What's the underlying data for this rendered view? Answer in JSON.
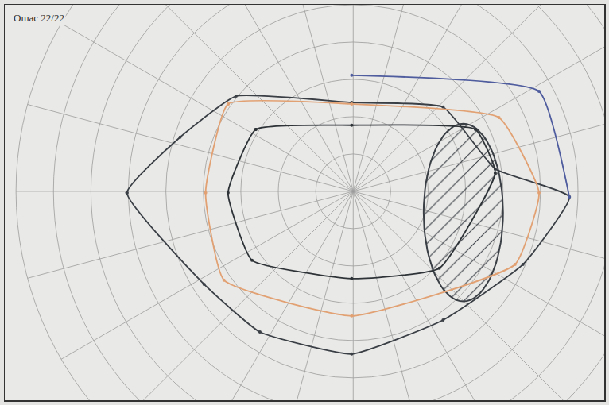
{
  "chart_data": {
    "type": "scatter",
    "title": "Omac 22/22",
    "xlim": [
      -93,
      67
    ],
    "ylim": [
      -56,
      50
    ],
    "tick_labels": false,
    "grid": true,
    "rings": [
      10,
      20,
      30,
      40,
      50,
      60,
      70,
      80,
      90
    ],
    "meridians": [
      0,
      15,
      30,
      45,
      60,
      75,
      90,
      105,
      120,
      135,
      150,
      165,
      180,
      195,
      210,
      225,
      240,
      255,
      270,
      285,
      300,
      315,
      330,
      345
    ],
    "series": [
      {
        "color": "#3a3f46",
        "marker": "circle",
        "line_style": "solid",
        "x": [
          -60.4,
          -46.2,
          -31.3,
          -0.4,
          24.0,
          37.9,
          57.7,
          45.3,
          24.0,
          -0.4,
          -24.9,
          -39.8,
          -60.4
        ],
        "y": [
          -0.4,
          14.5,
          25.5,
          23.8,
          22.6,
          6.0,
          -1.5,
          -19.6,
          -34.5,
          -43.6,
          -37.7,
          -24.9,
          -0.4
        ]
      },
      {
        "color": "#4f5c9e",
        "marker": "circle",
        "line_style": "solid",
        "x": [
          -0.4,
          49.6,
          57.7
        ],
        "y": [
          31.1,
          26.8,
          -1.5
        ]
      },
      {
        "color": "#e2a173",
        "marker": "circle",
        "line_style": "solid",
        "x": [
          -33.4,
          -0.4,
          38.9,
          49.6,
          43.2,
          -0.4,
          -34.5,
          -39.4,
          -33.4
        ],
        "y": [
          23.4,
          23.4,
          19.8,
          -0.4,
          -19.6,
          -33.4,
          -23.8,
          -0.4,
          23.4
        ]
      },
      {
        "color": "#2e3338",
        "marker": "circle",
        "line_style": "solid",
        "x": [
          -26.0,
          -0.4,
          32.6,
          37.9,
          23.0,
          -0.4,
          -27.0,
          -33.4,
          -26.0
        ],
        "y": [
          16.6,
          17.7,
          16.6,
          4.9,
          -20.6,
          -23.4,
          -18.5,
          -0.4,
          16.6
        ]
      }
    ],
    "blind_spot": {
      "x": 29.4,
      "y": -5.7,
      "rx": 10.6,
      "ry": 23.8,
      "color": "#3a3f46"
    }
  }
}
